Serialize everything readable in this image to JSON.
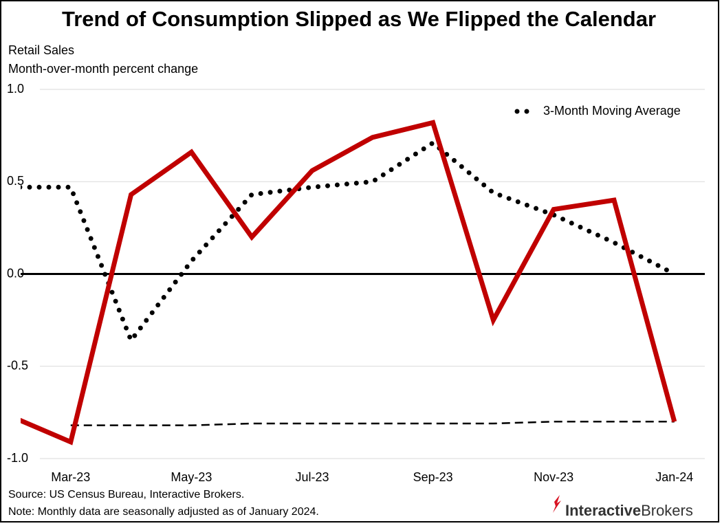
{
  "chart_data": {
    "type": "line",
    "title": "Trend of Consumption Slipped as We Flipped the Calendar",
    "subtitle": [
      "Retail Sales",
      "Month-over-month percent change"
    ],
    "categories": [
      null,
      "Mar-23",
      null,
      "May-23",
      null,
      "Jul-23",
      null,
      "Sep-23",
      null,
      "Nov-23",
      null,
      "Jan-24"
    ],
    "series": [
      {
        "color": "#c00000",
        "style": "solid",
        "values": [
          -0.77,
          -0.91,
          0.43,
          0.66,
          0.2,
          0.56,
          0.74,
          0.82,
          -0.25,
          0.35,
          0.4,
          -0.8
        ]
      },
      {
        "name": "3-Month Moving Average",
        "color": "#000000",
        "style": "dotted",
        "values": [
          0.47,
          0.47,
          -0.36,
          0.07,
          0.43,
          0.47,
          0.5,
          0.71,
          0.44,
          0.32,
          0.17,
          0.0
        ]
      },
      {
        "color": "#000000",
        "style": "dashed",
        "values": [
          null,
          -0.82,
          -0.82,
          -0.82,
          -0.81,
          -0.81,
          -0.81,
          -0.81,
          -0.81,
          -0.8,
          -0.8,
          -0.8
        ]
      }
    ],
    "ylim": [
      -1.0,
      1.0
    ],
    "yticks": [
      {
        "value": 1.0,
        "label": "1.0"
      },
      {
        "value": 0.5,
        "label": "0.5"
      },
      {
        "value": 0.0,
        "label": "0.0"
      },
      {
        "value": -0.5,
        "label": "-0.5"
      },
      {
        "value": -1.0,
        "label": "-1.0"
      }
    ],
    "grid": true,
    "legend": "top-right",
    "source": "Source: US Census Bureau, Interactive Brokers.",
    "note": "Note: Monthly data are seasonally adjusted as of January 2024."
  },
  "brand": {
    "first": "Interactive",
    "second": "Brokers"
  }
}
